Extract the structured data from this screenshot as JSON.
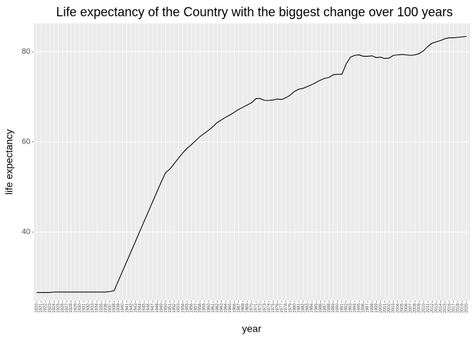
{
  "chart_data": {
    "type": "line",
    "title": "Life expectancy of the Country with the biggest change over 100 years",
    "x_label": "year",
    "y_label": "life expectancy",
    "categories": [
      "1920",
      "1921",
      "1922",
      "1923",
      "1924",
      "1925",
      "1926",
      "1927",
      "1928",
      "1929",
      "1930",
      "1931",
      "1932",
      "1933",
      "1934",
      "1935",
      "1936",
      "1937",
      "1938",
      "1939",
      "1940",
      "1941",
      "1942",
      "1943",
      "1944",
      "1945",
      "1946",
      "1947",
      "1948",
      "1949",
      "1950",
      "1951",
      "1952",
      "1953",
      "1954",
      "1955",
      "1956",
      "1957",
      "1958",
      "1959",
      "1960",
      "1961",
      "1962",
      "1963",
      "1964",
      "1965",
      "1966",
      "1967",
      "1968",
      "1969",
      "1970",
      "1971",
      "1972",
      "1973",
      "1974",
      "1975",
      "1976",
      "1977",
      "1978",
      "1979",
      "1980",
      "1981",
      "1982",
      "1983",
      "1984",
      "1985",
      "1986",
      "1987",
      "1988",
      "1989",
      "1990",
      "1991",
      "1992",
      "1993",
      "1994",
      "1995",
      "1996",
      "1997",
      "1998",
      "1999",
      "2000",
      "2001",
      "2002",
      "2003",
      "2004",
      "2005",
      "2006",
      "2007",
      "2008",
      "2009",
      "2010",
      "2011",
      "2012",
      "2013",
      "2014",
      "2015",
      "2016",
      "2017",
      "2018",
      "2019",
      "2020"
    ],
    "values": [
      26.6,
      26.6,
      26.6,
      26.6,
      26.7,
      26.7,
      26.7,
      26.7,
      26.7,
      26.7,
      26.7,
      26.7,
      26.7,
      26.7,
      26.7,
      26.7,
      26.7,
      26.8,
      27.0,
      29.2,
      31.4,
      33.6,
      35.8,
      38.0,
      40.2,
      42.4,
      44.6,
      46.8,
      49.0,
      51.2,
      53.2,
      54.0,
      55.2,
      56.4,
      57.6,
      58.6,
      59.4,
      60.3,
      61.2,
      61.9,
      62.6,
      63.4,
      64.3,
      64.9,
      65.5,
      66.0,
      66.6,
      67.2,
      67.7,
      68.2,
      68.7,
      69.6,
      69.6,
      69.2,
      69.2,
      69.3,
      69.5,
      69.4,
      69.8,
      70.4,
      71.2,
      71.7,
      71.9,
      72.3,
      72.7,
      73.2,
      73.7,
      74.1,
      74.3,
      74.9,
      75.0,
      75.0,
      77.3,
      78.8,
      79.2,
      79.3,
      79.0,
      79.0,
      79.1,
      78.7,
      78.8,
      78.5,
      78.6,
      79.2,
      79.3,
      79.4,
      79.3,
      79.2,
      79.3,
      79.6,
      80.2,
      81.2,
      81.9,
      82.2,
      82.5,
      82.9,
      83.1,
      83.1,
      83.2,
      83.3,
      83.4
    ],
    "color": "#000000",
    "ylim": [
      24.8,
      86.3
    ],
    "yticks": [
      40,
      60,
      80
    ],
    "grid": true
  }
}
